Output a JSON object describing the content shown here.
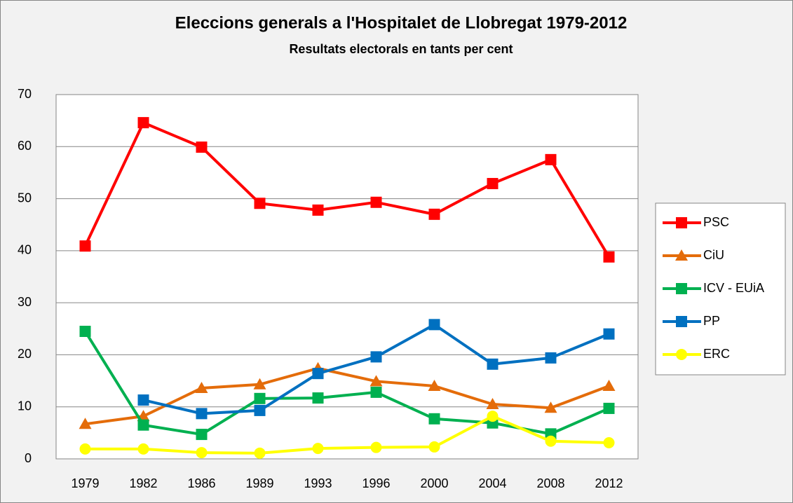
{
  "chart_data": {
    "type": "line",
    "title": "Eleccions generals a l'Hospitalet de Llobregat 1979-2012",
    "subtitle": "Resultats electorals en tants per cent",
    "categories": [
      "1979",
      "1982",
      "1986",
      "1989",
      "1993",
      "1996",
      "2000",
      "2004",
      "2008",
      "2012"
    ],
    "series": [
      {
        "name": "PSC",
        "color": "#ff0000",
        "marker": "square",
        "values": [
          40.9,
          64.6,
          59.9,
          49.1,
          47.8,
          49.3,
          47.0,
          52.9,
          57.5,
          38.8
        ]
      },
      {
        "name": "CiU",
        "color": "#e46c0a",
        "marker": "triangle",
        "values": [
          6.7,
          8.2,
          13.6,
          14.3,
          17.4,
          14.9,
          14.0,
          10.5,
          9.8,
          14.0
        ]
      },
      {
        "name": "ICV - EUiA",
        "color": "#00b050",
        "marker": "square",
        "values": [
          24.5,
          6.5,
          4.7,
          11.6,
          11.7,
          12.8,
          7.7,
          6.9,
          4.8,
          9.7
        ]
      },
      {
        "name": "PP",
        "color": "#0070c0",
        "marker": "square",
        "values": [
          null,
          11.3,
          8.7,
          9.3,
          16.4,
          19.6,
          25.8,
          18.2,
          19.4,
          24.0
        ]
      },
      {
        "name": "ERC",
        "color": "#ffff00",
        "marker": "circle",
        "values": [
          1.9,
          1.9,
          1.2,
          1.1,
          2.0,
          2.2,
          2.3,
          8.2,
          3.4,
          3.1
        ]
      }
    ],
    "ylim": [
      0,
      70
    ],
    "yticks": [
      0,
      10,
      20,
      30,
      40,
      50,
      60,
      70
    ],
    "grid": true,
    "legend": "right"
  }
}
